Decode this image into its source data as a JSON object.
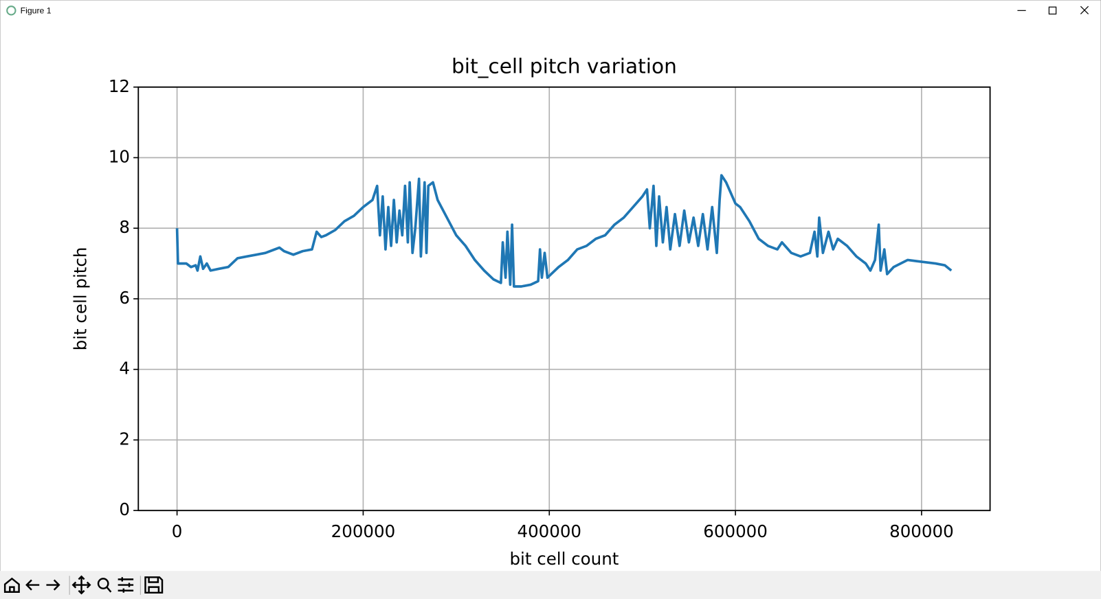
{
  "window": {
    "title": "Figure 1"
  },
  "chart_data": {
    "type": "line",
    "title": "bit_cell pitch variation",
    "xlabel": "bit cell count",
    "ylabel": "bit cell pitch",
    "color": "#1f77b4",
    "grid": true,
    "xlim": [
      -41600,
      873600
    ],
    "xticks": [
      0,
      200000,
      400000,
      600000,
      800000
    ],
    "ylim": [
      0,
      12
    ],
    "yticks": [
      0,
      2,
      4,
      6,
      8,
      10,
      12
    ],
    "x": [
      0,
      1000,
      10000,
      15000,
      20000,
      22000,
      25000,
      28000,
      32000,
      36000,
      45000,
      55000,
      65000,
      75000,
      85000,
      95000,
      100000,
      110000,
      115000,
      125000,
      135000,
      145000,
      150000,
      155000,
      160000,
      170000,
      180000,
      190000,
      200000,
      210000,
      215000,
      218000,
      221000,
      224000,
      227000,
      230000,
      233000,
      236000,
      239000,
      242000,
      245000,
      248000,
      250000,
      253000,
      256000,
      260000,
      262000,
      266000,
      268000,
      270000,
      275000,
      280000,
      290000,
      300000,
      310000,
      320000,
      330000,
      340000,
      348000,
      350000,
      353000,
      355000,
      358000,
      360000,
      362000,
      370000,
      380000,
      388000,
      390000,
      392000,
      395000,
      398000,
      410000,
      420000,
      430000,
      440000,
      450000,
      460000,
      470000,
      480000,
      490000,
      500000,
      505000,
      508000,
      512000,
      515000,
      518000,
      522000,
      526000,
      530000,
      535000,
      540000,
      545000,
      550000,
      555000,
      560000,
      565000,
      570000,
      575000,
      580000,
      583000,
      585000,
      590000,
      595000,
      600000,
      605000,
      615000,
      625000,
      635000,
      645000,
      650000,
      660000,
      670000,
      680000,
      685000,
      688000,
      690000,
      694000,
      700000,
      705000,
      710000,
      720000,
      730000,
      740000,
      745000,
      750000,
      754000,
      756000,
      760000,
      763000,
      770000,
      785000,
      800000,
      815000,
      825000,
      832000
    ],
    "values": [
      8.0,
      7.0,
      7.0,
      6.9,
      6.95,
      6.8,
      7.2,
      6.85,
      7.0,
      6.8,
      6.85,
      6.9,
      7.15,
      7.2,
      7.25,
      7.3,
      7.35,
      7.45,
      7.35,
      7.25,
      7.35,
      7.4,
      7.9,
      7.75,
      7.8,
      7.95,
      8.2,
      8.35,
      8.6,
      8.8,
      9.2,
      7.8,
      8.9,
      7.4,
      8.6,
      7.5,
      8.8,
      7.6,
      8.5,
      7.8,
      9.2,
      7.6,
      9.3,
      7.3,
      8.0,
      9.4,
      7.2,
      9.3,
      7.3,
      9.2,
      9.3,
      8.8,
      8.3,
      7.8,
      7.5,
      7.1,
      6.8,
      6.55,
      6.45,
      7.6,
      6.6,
      7.9,
      6.4,
      8.1,
      6.35,
      6.35,
      6.4,
      6.5,
      7.4,
      6.6,
      7.3,
      6.6,
      6.9,
      7.1,
      7.4,
      7.5,
      7.7,
      7.8,
      8.1,
      8.3,
      8.6,
      8.9,
      9.1,
      8.0,
      9.2,
      7.5,
      8.9,
      7.6,
      8.6,
      7.4,
      8.4,
      7.5,
      8.5,
      7.6,
      8.3,
      7.5,
      8.4,
      7.4,
      8.6,
      7.3,
      8.8,
      9.5,
      9.3,
      9.0,
      8.7,
      8.6,
      8.2,
      7.7,
      7.5,
      7.4,
      7.6,
      7.3,
      7.2,
      7.3,
      7.9,
      7.2,
      8.3,
      7.3,
      7.9,
      7.4,
      7.7,
      7.5,
      7.2,
      7.0,
      6.8,
      7.1,
      8.1,
      6.8,
      7.4,
      6.7,
      6.9,
      7.1,
      7.05,
      7.0,
      6.95,
      6.8
    ]
  }
}
